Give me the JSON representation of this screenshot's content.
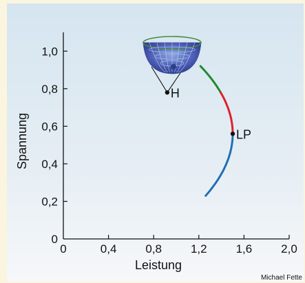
{
  "chart_data": {
    "type": "line",
    "xlabel": "Leistung",
    "ylabel": "Spannung",
    "xlim": [
      0,
      2.0
    ],
    "ylim": [
      0,
      1.1
    ],
    "x_ticks": [
      0,
      0.4,
      0.8,
      1.2,
      1.6,
      2.0
    ],
    "x_tick_labels": [
      "0",
      "0,4",
      "0,8",
      "1,2",
      "1,6",
      "2,0"
    ],
    "y_ticks": [
      0,
      0.2,
      0.4,
      0.6,
      0.8,
      1.0
    ],
    "y_tick_labels": [
      "0",
      "0,2",
      "0,4",
      "0,6",
      "0,8",
      "1,0"
    ],
    "nose_curve": {
      "p_max": 1.5,
      "v_nose": 0.56,
      "k": 2.2
    },
    "series": [
      {
        "color": "#1f8a2e",
        "v_from": 0.78,
        "v_to": 0.92
      },
      {
        "color": "#e0202a",
        "v_from": 0.56,
        "v_to": 0.78
      },
      {
        "color": "#1f6fb5",
        "v_from": 0.23,
        "v_to": 0.56
      }
    ],
    "points": [
      {
        "label": "H",
        "x": 0.92,
        "y": 0.78
      },
      {
        "label": "LP",
        "x": 1.5,
        "y": 0.56
      }
    ],
    "bowl_icon": "bowl-with-ball-icon"
  },
  "credit": "Michael Fette"
}
